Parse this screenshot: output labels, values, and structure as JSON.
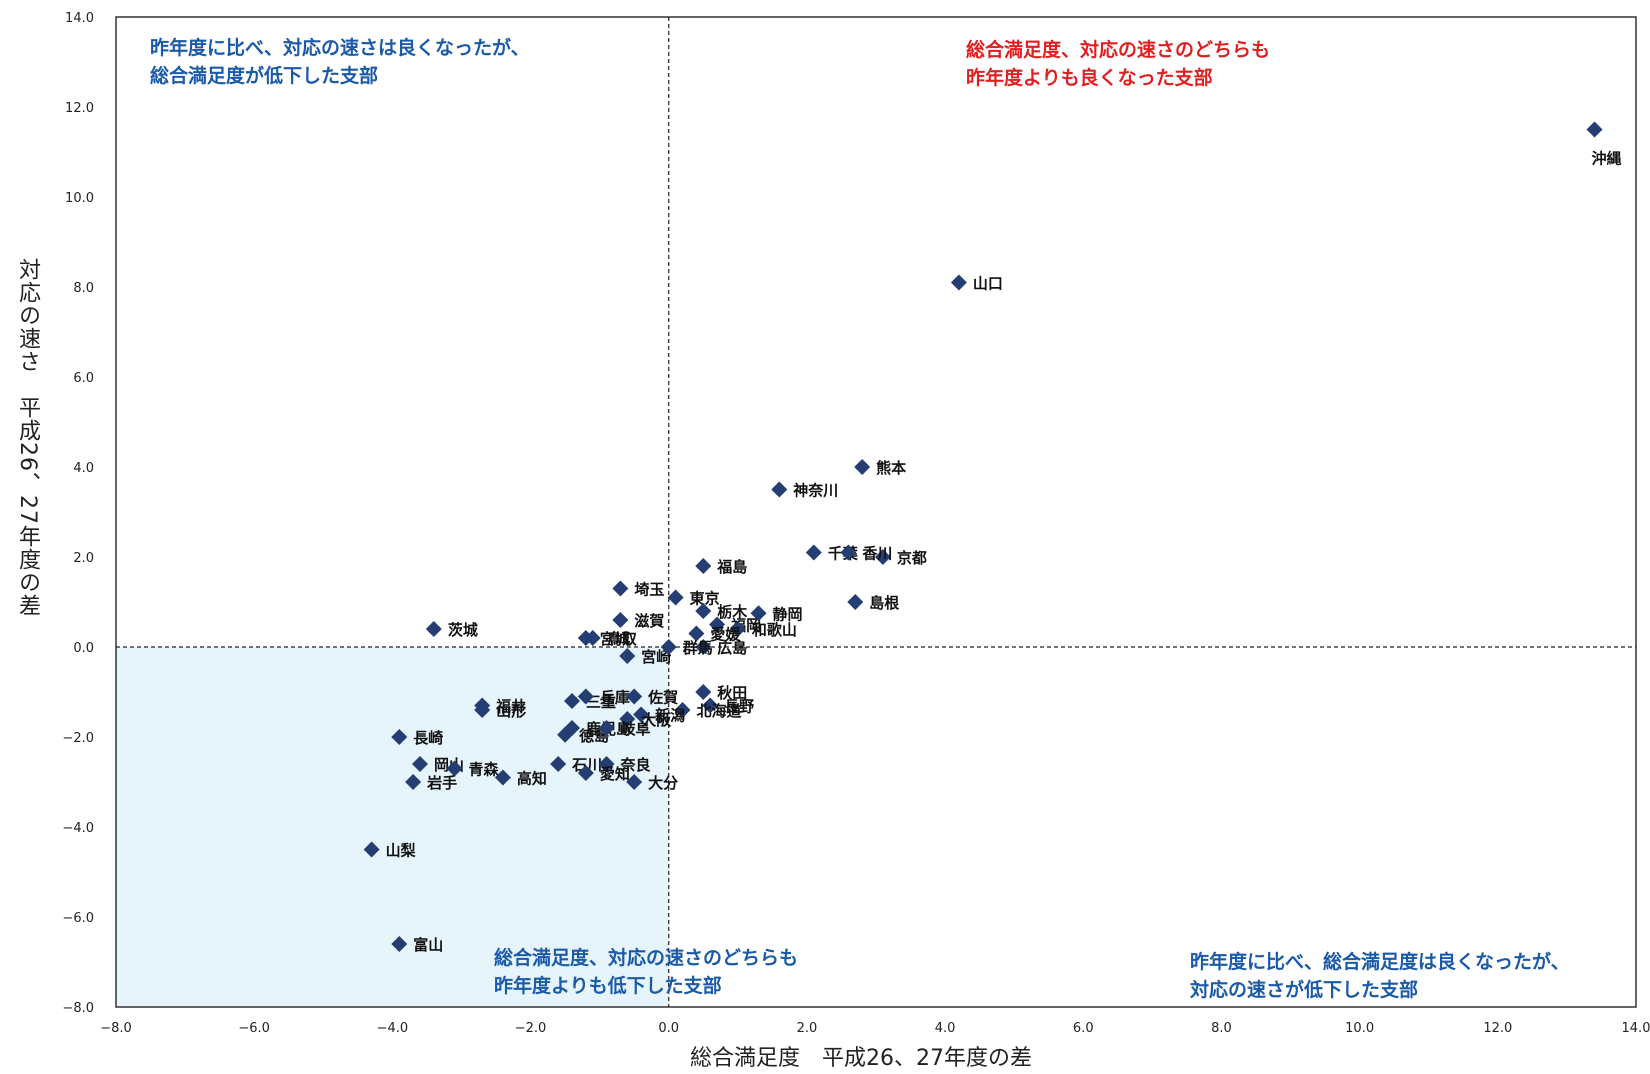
{
  "chart_data": {
    "type": "scatter",
    "xlabel": "総合満足度　平成26、27年度の差",
    "ylabel": "対応の速さ　平成26、27年度の差",
    "xlim": [
      -8.0,
      14.0
    ],
    "ylim": [
      -8.0,
      14.0
    ],
    "x_ticks": [
      "−8.0",
      "−6.0",
      "−4.0",
      "−2.0",
      "0.0",
      "2.0",
      "4.0",
      "6.0",
      "8.0",
      "10.0",
      "12.0",
      "14.0"
    ],
    "y_ticks": [
      "14.0",
      "12.0",
      "10.0",
      "8.0",
      "6.0",
      "4.0",
      "2.0",
      "0.0",
      "−2.0",
      "−4.0",
      "−6.0",
      "−8.0"
    ],
    "x_tick_values": [
      -8,
      -6,
      -4,
      -2,
      0,
      2,
      4,
      6,
      8,
      10,
      12,
      14
    ],
    "y_tick_values": [
      14,
      12,
      10,
      8,
      6,
      4,
      2,
      0,
      -2,
      -4,
      -6,
      -8
    ],
    "grid": false,
    "reference_lines": {
      "x": 0,
      "y": 0,
      "style": "dashed"
    },
    "shaded_quadrant": "bottom-left",
    "shade_color": "#e6f4fb",
    "marker_color": "#243d73",
    "points": [
      {
        "label": "沖縄",
        "x": 13.4,
        "y": 11.5
      },
      {
        "label": "山口",
        "x": 4.2,
        "y": 8.1
      },
      {
        "label": "熊本",
        "x": 2.8,
        "y": 4.0
      },
      {
        "label": "神奈川",
        "x": 1.6,
        "y": 3.5
      },
      {
        "label": "京都",
        "x": 3.1,
        "y": 2.0
      },
      {
        "label": "千葉",
        "x": 2.1,
        "y": 2.1
      },
      {
        "label": "香川",
        "x": 2.6,
        "y": 2.1
      },
      {
        "label": "島根",
        "x": 2.7,
        "y": 1.0
      },
      {
        "label": "福島",
        "x": 0.5,
        "y": 1.8
      },
      {
        "label": "埼玉",
        "x": -0.7,
        "y": 1.3
      },
      {
        "label": "東京",
        "x": 0.1,
        "y": 1.1
      },
      {
        "label": "栃木",
        "x": 0.5,
        "y": 0.8
      },
      {
        "label": "福岡",
        "x": 0.7,
        "y": 0.5
      },
      {
        "label": "静岡",
        "x": 1.3,
        "y": 0.75
      },
      {
        "label": "和歌山",
        "x": 1.0,
        "y": 0.4
      },
      {
        "label": "愛媛",
        "x": 0.4,
        "y": 0.3
      },
      {
        "label": "茨城",
        "x": -3.4,
        "y": 0.4
      },
      {
        "label": "宮城",
        "x": -1.2,
        "y": 0.2
      },
      {
        "label": "鳥取",
        "x": -1.1,
        "y": 0.2
      },
      {
        "label": "滋賀",
        "x": -0.7,
        "y": 0.6
      },
      {
        "label": "広島",
        "x": 0.5,
        "y": 0.0
      },
      {
        "label": "宮崎",
        "x": -0.6,
        "y": -0.2
      },
      {
        "label": "群馬",
        "x": 0.0,
        "y": 0.0
      },
      {
        "label": "福井",
        "x": -2.7,
        "y": -1.3
      },
      {
        "label": "山形",
        "x": -2.7,
        "y": -1.4
      },
      {
        "label": "三重",
        "x": -1.4,
        "y": -1.2
      },
      {
        "label": "兵庫",
        "x": -1.2,
        "y": -1.1
      },
      {
        "label": "佐賀",
        "x": -0.5,
        "y": -1.1
      },
      {
        "label": "秋田",
        "x": 0.5,
        "y": -1.0
      },
      {
        "label": "長野",
        "x": 0.6,
        "y": -1.3
      },
      {
        "label": "北海道",
        "x": 0.2,
        "y": -1.4
      },
      {
        "label": "新潟",
        "x": -0.4,
        "y": -1.5
      },
      {
        "label": "大阪",
        "x": -0.6,
        "y": -1.6
      },
      {
        "label": "鹿児島",
        "x": -1.4,
        "y": -1.8
      },
      {
        "label": "徳島",
        "x": -1.5,
        "y": -1.95
      },
      {
        "label": "岐阜",
        "x": -0.9,
        "y": -1.8
      },
      {
        "label": "長崎",
        "x": -3.9,
        "y": -2.0
      },
      {
        "label": "岡山",
        "x": -3.6,
        "y": -2.6
      },
      {
        "label": "青森",
        "x": -3.1,
        "y": -2.7
      },
      {
        "label": "高知",
        "x": -2.4,
        "y": -2.9
      },
      {
        "label": "石川",
        "x": -1.6,
        "y": -2.6
      },
      {
        "label": "奈良",
        "x": -0.9,
        "y": -2.6
      },
      {
        "label": "愛知",
        "x": -1.2,
        "y": -2.8
      },
      {
        "label": "大分",
        "x": -0.5,
        "y": -3.0
      },
      {
        "label": "岩手",
        "x": -3.7,
        "y": -3.0
      },
      {
        "label": "山梨",
        "x": -4.3,
        "y": -4.5
      },
      {
        "label": "富山",
        "x": -3.9,
        "y": -6.6
      }
    ],
    "annotations": [
      {
        "id": "top_left",
        "color": "#1a5aa8",
        "lines": [
          "昨年度に比べ、対応の速さは良くなったが、",
          "総合満足度が低下した支部"
        ]
      },
      {
        "id": "top_right",
        "color": "#e02020",
        "lines": [
          "総合満足度、対応の速さのどちらも",
          "昨年度よりも良くなった支部"
        ]
      },
      {
        "id": "bottom_left",
        "color": "#1a5aa8",
        "lines": [
          "総合満足度、対応の速さのどちらも",
          "昨年度よりも低下した支部"
        ]
      },
      {
        "id": "bottom_right",
        "color": "#1a5aa8",
        "lines": [
          "昨年度に比べ、総合満足度は良くなったが、",
          "対応の速さが低下した支部"
        ]
      }
    ]
  }
}
